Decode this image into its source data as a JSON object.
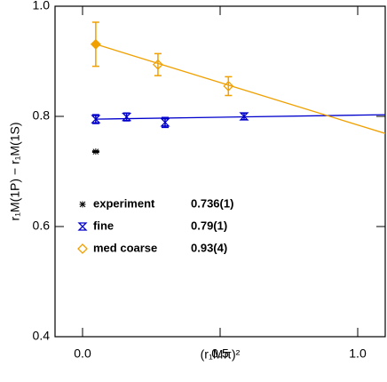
{
  "chart_data": {
    "type": "errorbar",
    "xlabel": "(r₁Mπ)²",
    "ylabel": "r₁M(1P) − r₁M(1S)",
    "xlim": [
      -0.1,
      1.1
    ],
    "ylim": [
      0.4,
      1.0
    ],
    "xticks": [
      {
        "value": 0,
        "label": "0.0"
      },
      0.5,
      {
        "value": 1,
        "label": "1.0"
      }
    ],
    "yticks": [
      0.4,
      0.6,
      0.8,
      {
        "value": 1,
        "label": "1.0"
      }
    ],
    "series": [
      {
        "name": "experiment",
        "legend_value": "0.736(1)",
        "color": "#000000",
        "marker": "star",
        "x": [
          0.048
        ],
        "values": [
          0.736
        ],
        "errors": [
          0.001
        ]
      },
      {
        "name": "fine",
        "legend_value": "0.79(1)",
        "color": "#0000cc",
        "marker": "hourglass",
        "x": [
          0.048,
          0.16,
          0.3,
          0.587
        ],
        "values": [
          0.795,
          0.799,
          0.789,
          0.8
        ],
        "errors": [
          0.008,
          0.007,
          0.009,
          0.006
        ]
      },
      {
        "name": "med coarse",
        "legend_value": "0.93(4)",
        "color": "#f0a000",
        "marker": "diamond",
        "x": [
          0.048,
          0.274,
          0.53
        ],
        "values": [
          0.931,
          0.894,
          0.855
        ],
        "errors": [
          0.04,
          0.02,
          0.017
        ]
      }
    ],
    "fit_lines": [
      {
        "color": "#0000cc",
        "x": [
          0.048,
          1.1
        ],
        "values": [
          0.795,
          0.803
        ]
      },
      {
        "color": "#f0a000",
        "x": [
          0.048,
          1.1
        ],
        "values": [
          0.931,
          0.769
        ]
      }
    ]
  }
}
